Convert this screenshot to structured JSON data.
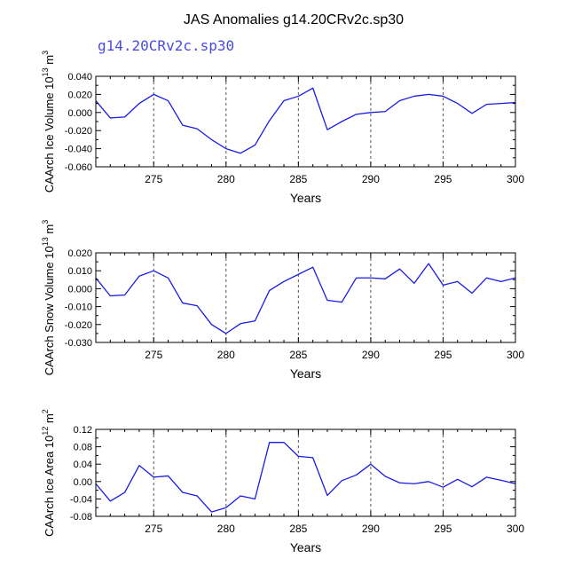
{
  "figure": {
    "title": "JAS Anomalies g14.20CRv2c.sp30",
    "subtitle": "g14.20CRv2c.sp30"
  },
  "colors": {
    "series_line": "#1a1ae6",
    "grid_line": "#555555",
    "subtitle": "#4a4ae6"
  },
  "chart_data": [
    {
      "type": "line",
      "title": "",
      "xlabel": "Years",
      "ylabel": "CAArch Ice Volume 10^13 m^3",
      "ylabel_parts": {
        "prefix": "CAArch Ice Volume 10",
        "exp1": "13",
        "mid": " m",
        "exp2": "3"
      },
      "xlim": [
        271,
        300
      ],
      "ylim": [
        -0.06,
        0.04
      ],
      "xticks": [
        275,
        280,
        285,
        290,
        295,
        300
      ],
      "yticks": [
        -0.06,
        -0.04,
        -0.02,
        0.0,
        0.02,
        0.04
      ],
      "ytick_labels": [
        "-0.060",
        "-0.040",
        "-0.020",
        "0.000",
        "0.020",
        "0.040"
      ],
      "grid": "vertical dashed at major x ticks",
      "x": [
        271,
        272,
        273,
        274,
        275,
        276,
        277,
        278,
        279,
        280,
        281,
        282,
        283,
        284,
        285,
        286,
        287,
        288,
        289,
        290,
        291,
        292,
        293,
        294,
        295,
        296,
        297,
        298,
        299,
        300
      ],
      "series": [
        {
          "values": [
            0.013,
            -0.006,
            -0.005,
            0.01,
            0.02,
            0.013,
            -0.014,
            -0.018,
            -0.03,
            -0.04,
            -0.045,
            -0.036,
            -0.009,
            0.013,
            0.018,
            0.027,
            -0.019,
            -0.01,
            -0.002,
            0.0,
            0.001,
            0.013,
            0.018,
            0.02,
            0.018,
            0.01,
            -0.001,
            0.009,
            0.01,
            0.011
          ]
        }
      ]
    },
    {
      "type": "line",
      "title": "",
      "xlabel": "Years",
      "ylabel": "CAArch Snow Volume 10^13 m^3",
      "ylabel_parts": {
        "prefix": "CAArch Snow Volume 10",
        "exp1": "13",
        "mid": " m",
        "exp2": "3"
      },
      "xlim": [
        271,
        300
      ],
      "ylim": [
        -0.03,
        0.02
      ],
      "xticks": [
        275,
        280,
        285,
        290,
        295,
        300
      ],
      "yticks": [
        -0.03,
        -0.02,
        -0.01,
        0.0,
        0.01,
        0.02
      ],
      "ytick_labels": [
        "-0.030",
        "-0.020",
        "-0.010",
        "0.000",
        "0.010",
        "0.020"
      ],
      "grid": "vertical dashed at major x ticks",
      "x": [
        271,
        272,
        273,
        274,
        275,
        276,
        277,
        278,
        279,
        280,
        281,
        282,
        283,
        284,
        285,
        286,
        287,
        288,
        289,
        290,
        291,
        292,
        293,
        294,
        295,
        296,
        297,
        298,
        299,
        300
      ],
      "series": [
        {
          "values": [
            0.006,
            -0.004,
            -0.0035,
            0.007,
            0.01,
            0.006,
            -0.008,
            -0.0095,
            -0.02,
            -0.025,
            -0.0195,
            -0.018,
            -0.001,
            0.004,
            0.008,
            0.012,
            -0.0065,
            -0.0075,
            0.006,
            0.006,
            0.0055,
            0.011,
            0.003,
            0.014,
            0.002,
            0.004,
            -0.0025,
            0.006,
            0.004,
            0.006
          ]
        }
      ]
    },
    {
      "type": "line",
      "title": "",
      "xlabel": "Years",
      "ylabel": "CAArch Ice Area 10^12 m^2",
      "ylabel_parts": {
        "prefix": "CAArch Ice Area 10",
        "exp1": "12",
        "mid": " m",
        "exp2": "2"
      },
      "xlim": [
        271,
        300
      ],
      "ylim": [
        -0.08,
        0.12
      ],
      "xticks": [
        275,
        280,
        285,
        290,
        295,
        300
      ],
      "yticks": [
        -0.08,
        -0.04,
        0.0,
        0.04,
        0.08,
        0.12
      ],
      "ytick_labels": [
        "-0.08",
        "-0.04",
        "0.00",
        "0.04",
        "0.08",
        "0.12"
      ],
      "grid": "vertical dashed at major x ticks",
      "x": [
        271,
        272,
        273,
        274,
        275,
        276,
        277,
        278,
        279,
        280,
        281,
        282,
        283,
        284,
        285,
        286,
        287,
        288,
        289,
        290,
        291,
        292,
        293,
        294,
        295,
        296,
        297,
        298,
        299,
        300
      ],
      "series": [
        {
          "values": [
            -0.005,
            -0.045,
            -0.025,
            0.037,
            0.01,
            0.013,
            -0.025,
            -0.033,
            -0.07,
            -0.06,
            -0.033,
            -0.04,
            0.09,
            0.09,
            0.058,
            0.055,
            -0.032,
            0.002,
            0.015,
            0.04,
            0.012,
            -0.003,
            -0.005,
            0.0,
            -0.013,
            0.005,
            -0.012,
            0.01,
            0.003,
            -0.005
          ]
        }
      ]
    }
  ]
}
